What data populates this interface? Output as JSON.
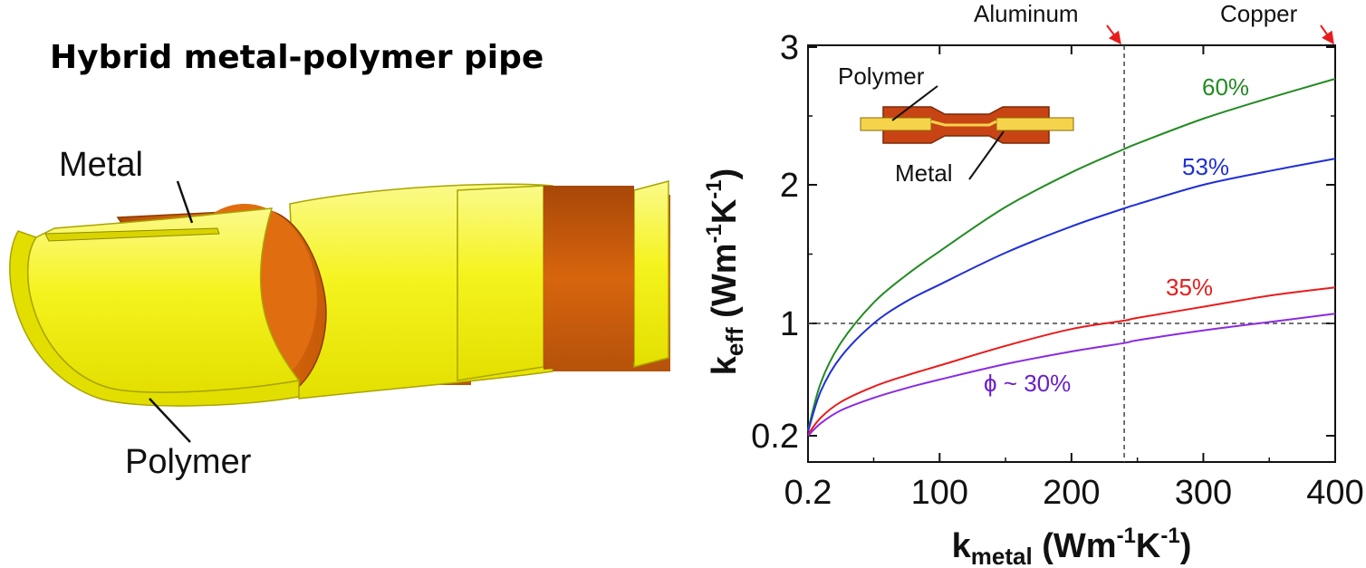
{
  "left_panel": {
    "title": "Hybrid metal-polymer pipe",
    "label_metal": "Metal",
    "label_polymer": "Polymer",
    "colors": {
      "polymer": "#f5f31f",
      "polymer_dark": "#c9c400",
      "metal": "#e66f0e",
      "metal_dark": "#b34a00"
    }
  },
  "chart_data": {
    "type": "line",
    "title": "",
    "xlabel": {
      "main": "k",
      "sub": "metal",
      "units": " (Wm",
      "exp1": "-1",
      "mid": "K",
      "exp2": "-1",
      "close": ")"
    },
    "ylabel": {
      "main": "k",
      "sub": "eff",
      "units": " (Wm",
      "exp1": "-1",
      "mid": "K",
      "exp2": "-1",
      "close": ")"
    },
    "xlim": [
      0.2,
      400
    ],
    "ylim": [
      0.2,
      3
    ],
    "y_scale": "piecewise: equal spacing between 0.2, 1, 2, 3",
    "x_ticks": [
      {
        "value": 0.2,
        "label": "0.2"
      },
      {
        "value": 100,
        "label": "100"
      },
      {
        "value": 200,
        "label": "200"
      },
      {
        "value": 300,
        "label": "300"
      },
      {
        "value": 400,
        "label": "400"
      }
    ],
    "y_ticks": [
      {
        "value": 0.2,
        "label": "0.2"
      },
      {
        "value": 1,
        "label": "1"
      },
      {
        "value": 2,
        "label": "2"
      },
      {
        "value": 3,
        "label": "3"
      }
    ],
    "x": [
      0.2,
      10,
      25,
      50,
      75,
      100,
      150,
      200,
      240,
      250,
      300,
      350,
      400
    ],
    "series": [
      {
        "name": "60%",
        "color": "#238b23",
        "values": [
          0.24,
          0.58,
          0.86,
          1.15,
          1.35,
          1.52,
          1.84,
          2.09,
          2.26,
          2.3,
          2.48,
          2.63,
          2.77
        ]
      },
      {
        "name": "53%",
        "color": "#1f2fd6",
        "values": [
          0.23,
          0.52,
          0.76,
          1.0,
          1.16,
          1.28,
          1.51,
          1.7,
          1.83,
          1.86,
          2.0,
          2.1,
          2.19
        ]
      },
      {
        "name": "35%",
        "color": "#e81c1c",
        "values": [
          0.21,
          0.33,
          0.44,
          0.55,
          0.63,
          0.7,
          0.84,
          0.96,
          1.02,
          1.04,
          1.12,
          1.2,
          1.26
        ]
      },
      {
        "name": "φ ~ 30%",
        "color": "#8a2be2",
        "values": [
          0.2,
          0.29,
          0.38,
          0.47,
          0.54,
          0.6,
          0.71,
          0.8,
          0.86,
          0.88,
          0.95,
          1.01,
          1.07
        ]
      }
    ],
    "series_labels": [
      "60%",
      "53%",
      "35%",
      "ϕ ~ 30%"
    ],
    "reference_lines": {
      "horizontal_y": 1,
      "vertical_x": 240
    },
    "annotations": {
      "aluminum": "Aluminum",
      "copper": "Copper"
    },
    "inset": {
      "label_polymer": "Polymer",
      "label_metal": "Metal"
    },
    "grid": false,
    "legend": "none"
  }
}
